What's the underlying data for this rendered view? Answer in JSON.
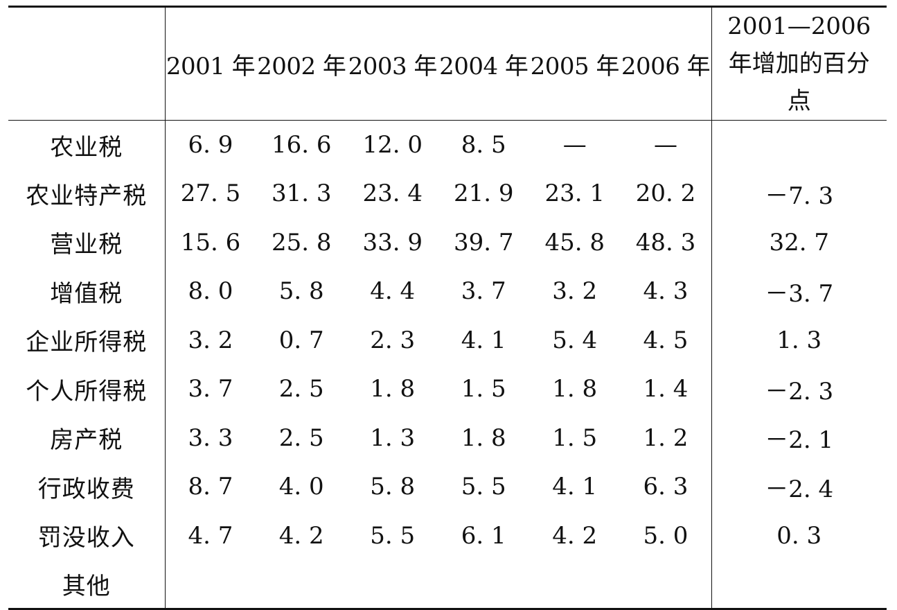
{
  "table": {
    "corner": "",
    "years": [
      "2001 年",
      "2002 年",
      "2003 年",
      "2004 年",
      "2005 年",
      "2006 年"
    ],
    "change_header": "2001—2006 年增加的百分点",
    "rows": [
      {
        "label": "农业税",
        "values": [
          "6. 9",
          "16. 6",
          "12. 0",
          "8. 5",
          "—",
          "—"
        ],
        "change": ""
      },
      {
        "label": "农业特产税",
        "values": [
          "27. 5",
          "31. 3",
          "23. 4",
          "21. 9",
          "23. 1",
          "20. 2"
        ],
        "change": "－7. 3"
      },
      {
        "label": "营业税",
        "values": [
          "15. 6",
          "25. 8",
          "33. 9",
          "39. 7",
          "45. 8",
          "48. 3"
        ],
        "change": "32. 7"
      },
      {
        "label": "增值税",
        "values": [
          "8. 0",
          "5. 8",
          "4. 4",
          "3. 7",
          "3. 2",
          "4. 3"
        ],
        "change": "－3. 7"
      },
      {
        "label": "企业所得税",
        "values": [
          "3. 2",
          "0. 7",
          "2. 3",
          "4. 1",
          "5. 4",
          "4. 5"
        ],
        "change": "1. 3"
      },
      {
        "label": "个人所得税",
        "values": [
          "3. 7",
          "2. 5",
          "1. 8",
          "1. 5",
          "1. 8",
          "1. 4"
        ],
        "change": "－2. 3"
      },
      {
        "label": "房产税",
        "values": [
          "3. 3",
          "2. 5",
          "1. 3",
          "1. 8",
          "1. 5",
          "1. 2"
        ],
        "change": "－2. 1"
      },
      {
        "label": "行政收费",
        "values": [
          "8. 7",
          "4. 0",
          "5. 8",
          "5. 5",
          "4. 1",
          "6. 3"
        ],
        "change": "－2. 4"
      },
      {
        "label": "罚没收入",
        "values": [
          "4. 7",
          "4. 2",
          "5. 5",
          "6. 1",
          "4. 2",
          "5. 0"
        ],
        "change": "0. 3"
      },
      {
        "label": "其他",
        "values": [
          "",
          "",
          "",
          "",
          "",
          ""
        ],
        "change": ""
      }
    ]
  }
}
